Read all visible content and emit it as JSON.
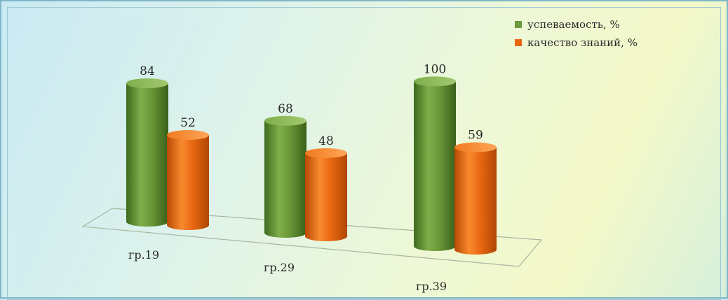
{
  "chart_data": {
    "type": "bar",
    "categories": [
      "гр.19",
      "гр.29",
      "гр.39"
    ],
    "series": [
      {
        "name": "успеваемость, %",
        "values": [
          84,
          68,
          100
        ],
        "color": "#6b9a3a"
      },
      {
        "name": "качество знаний, %",
        "values": [
          52,
          48,
          59
        ],
        "color": "#e8660f"
      }
    ],
    "title": "",
    "xlabel": "",
    "ylabel": "",
    "ylim": [
      0,
      100
    ],
    "grid": false,
    "legend_position": "top-right",
    "style": "3d-cylinder"
  }
}
